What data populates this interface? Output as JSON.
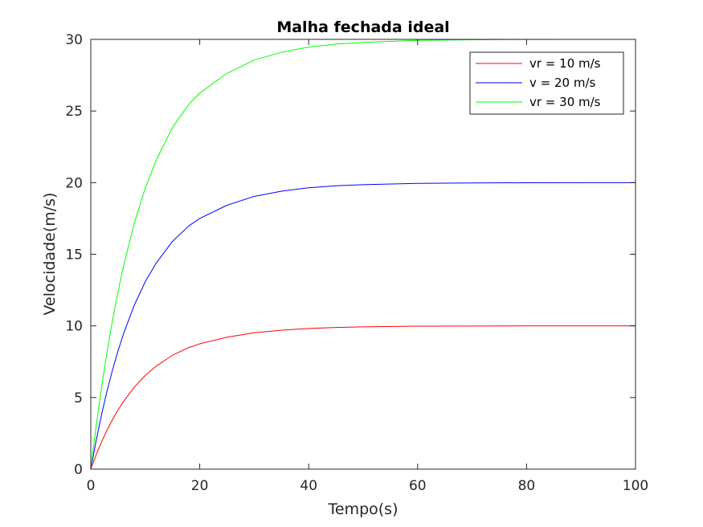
{
  "chart_data": {
    "type": "line",
    "title": "Malha fechada ideal",
    "xlabel": "Tempo(s)",
    "ylabel": "Velocidade(m/s)",
    "xlim": [
      0,
      100
    ],
    "ylim": [
      0,
      30
    ],
    "xticks": [
      0,
      20,
      40,
      60,
      80,
      100
    ],
    "yticks": [
      0,
      5,
      10,
      15,
      20,
      25,
      30
    ],
    "xtick_labels": [
      "0",
      "20",
      "40",
      "60",
      "80",
      "100"
    ],
    "ytick_labels": [
      "0",
      "5",
      "10",
      "15",
      "20",
      "25",
      "30"
    ],
    "grid": false,
    "legend_position": "top-right",
    "x": [
      0,
      1,
      2,
      3,
      4,
      5,
      6,
      8,
      10,
      12,
      15,
      18,
      20,
      25,
      30,
      35,
      40,
      45,
      50,
      60,
      70,
      80,
      90,
      100
    ],
    "series": [
      {
        "name": "vr = 10 m/s",
        "color": "#ff0000",
        "values": [
          0,
          1.01,
          1.92,
          2.74,
          3.47,
          4.13,
          4.72,
          5.73,
          6.54,
          7.19,
          7.95,
          8.49,
          8.75,
          9.21,
          9.52,
          9.7,
          9.82,
          9.89,
          9.93,
          9.98,
          9.99,
          10.0,
          10.0,
          10.0
        ]
      },
      {
        "name": "v = 20 m/s",
        "color": "#0000ff",
        "values": [
          0,
          2.02,
          3.84,
          5.48,
          6.94,
          8.26,
          9.44,
          11.46,
          13.08,
          14.38,
          15.9,
          16.98,
          17.5,
          18.42,
          19.04,
          19.4,
          19.64,
          19.78,
          19.86,
          19.95,
          19.98,
          19.99,
          20.0,
          20.0
        ]
      },
      {
        "name": "vr = 30 m/s",
        "color": "#00ff00",
        "values": [
          0,
          3.03,
          5.76,
          8.22,
          10.41,
          12.39,
          14.16,
          17.19,
          19.62,
          21.57,
          23.85,
          25.47,
          26.25,
          27.63,
          28.56,
          29.1,
          29.46,
          29.67,
          29.79,
          29.93,
          29.97,
          29.99,
          30.0,
          30.0
        ]
      }
    ]
  }
}
